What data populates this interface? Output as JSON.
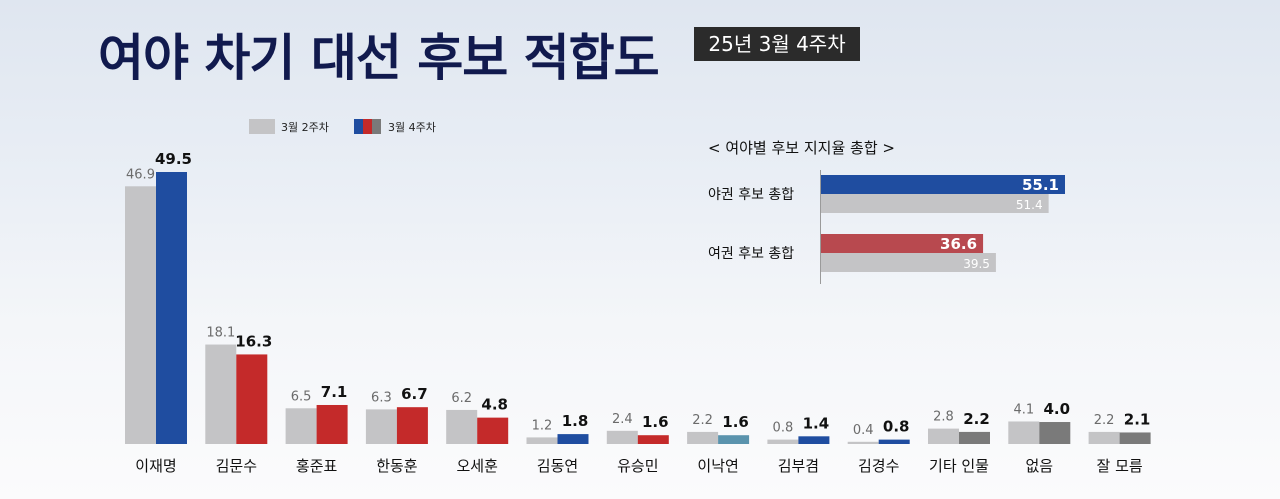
{
  "title": "여야 차기 대선 후보 적합도",
  "badge": "25년 3월 4주차",
  "chart_data": {
    "type": "bar",
    "legend": {
      "position": "top-left",
      "series_names": [
        "3월 2주차",
        "3월 4주차"
      ]
    },
    "categories": [
      "이재명",
      "김문수",
      "홍준표",
      "한동훈",
      "오세훈",
      "김동연",
      "유승민",
      "이낙연",
      "김부겸",
      "김경수",
      "기타 인물",
      "없음",
      "잘 모름"
    ],
    "series": [
      {
        "name": "3월 2주차",
        "values": [
          46.9,
          18.1,
          6.5,
          6.3,
          6.2,
          1.2,
          2.4,
          2.2,
          0.8,
          0.4,
          2.8,
          4.1,
          2.2
        ]
      },
      {
        "name": "3월 4주차",
        "values": [
          49.5,
          16.3,
          7.1,
          6.7,
          4.8,
          1.8,
          1.6,
          1.6,
          1.4,
          0.8,
          2.2,
          4.0,
          2.1
        ]
      }
    ],
    "value_labels_prev": [
      "46.9",
      "18.1",
      "6.5",
      "6.3",
      "6.2",
      "1.2",
      "2.4",
      "2.2",
      "0.8",
      "0.4",
      "2.8",
      "4.1",
      "2.2"
    ],
    "value_labels_cur": [
      "49.5",
      "16.3",
      "7.1",
      "6.7",
      "4.8",
      "1.8",
      "1.6",
      "1.6",
      "1.4",
      "0.8",
      "2.2",
      "4.0",
      "2.1"
    ],
    "ylim": [
      0,
      50
    ],
    "grid": false,
    "colors": {
      "prev": "#c4c4c6",
      "cur": [
        "#1f4da0",
        "#c42a2a",
        "#c42a2a",
        "#c42a2a",
        "#c42a2a",
        "#1f4da0",
        "#c42a2a",
        "#5a93ad",
        "#1f4da0",
        "#1f4da0",
        "#7a7a7a",
        "#7a7a7a",
        "#7a7a7a"
      ],
      "legend_swatch": [
        "#1f4da0",
        "#c42a2a",
        "#7a7a7a"
      ]
    },
    "inset": {
      "type": "bar-horizontal",
      "title": "< 여야별 후보 지지율 총합 >",
      "xlim": [
        0,
        56
      ],
      "rows": [
        {
          "label": "야권 후보 총합",
          "current": 55.1,
          "previous": 51.4,
          "current_label": "55.1",
          "previous_label": "51.4",
          "color": "#1f4da0"
        },
        {
          "label": "여권 후보 총합",
          "current": 36.6,
          "previous": 39.5,
          "current_label": "36.6",
          "previous_label": "39.5",
          "color": "#b8494f"
        }
      ]
    }
  }
}
